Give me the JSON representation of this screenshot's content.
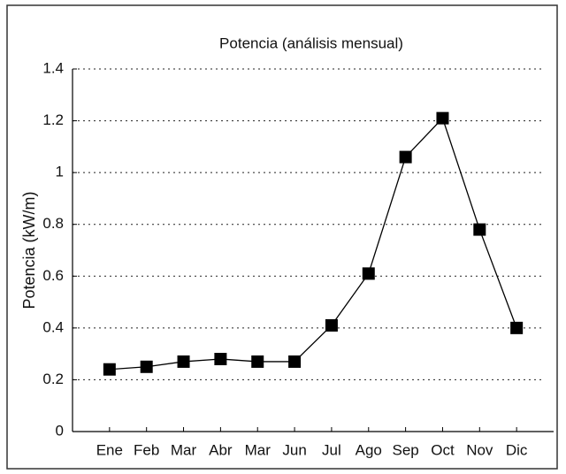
{
  "chart_data": {
    "type": "line",
    "title": "Potencia (análisis mensual)",
    "y_label": "Potencia (kW/m)",
    "categories": [
      "Ene",
      "Feb",
      "Mar",
      "Abr",
      "Mar",
      "Jun",
      "Jul",
      "Ago",
      "Sep",
      "Oct",
      "Nov",
      "Dic"
    ],
    "values": [
      0.24,
      0.25,
      0.27,
      0.28,
      0.27,
      0.27,
      0.41,
      0.61,
      1.06,
      1.21,
      0.78,
      0.4
    ],
    "color": "#000000",
    "ylim": [
      0,
      1.4
    ],
    "yticks": [
      0,
      0.2,
      0.4,
      0.6,
      0.8,
      1,
      1.2,
      1.4
    ],
    "grid": true
  }
}
